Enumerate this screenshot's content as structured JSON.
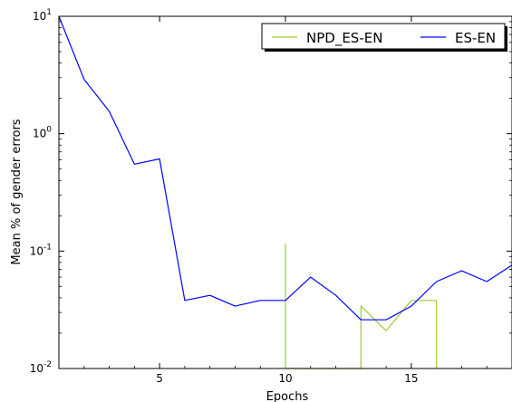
{
  "chart_data": {
    "type": "line",
    "xlabel": "Epochs",
    "ylabel": "Mean % of gender errors",
    "yscale": "log",
    "xlim": [
      1,
      19
    ],
    "ylim": [
      0.01,
      10
    ],
    "xticks": [
      5,
      10,
      15
    ],
    "yticks": [
      {
        "value": 0.01,
        "base": "10",
        "exp": "-2"
      },
      {
        "value": 0.1,
        "base": "10",
        "exp": "-1"
      },
      {
        "value": 1,
        "base": "10",
        "exp": "0"
      },
      {
        "value": 10,
        "base": "10",
        "exp": "1"
      }
    ],
    "legend": {
      "position": "top-right"
    },
    "series": [
      {
        "name": "NPD_ES-EN",
        "color": "#9acd32",
        "points": [
          [
            10,
            0.01
          ],
          [
            10,
            0.115
          ],
          [
            10,
            0.01
          ],
          [
            13,
            0.01
          ],
          [
            13,
            0.034
          ],
          [
            14,
            0.021
          ],
          [
            15,
            0.038
          ],
          [
            16,
            0.038
          ],
          [
            16,
            0.01
          ]
        ]
      },
      {
        "name": "ES-EN",
        "color": "#0000ff",
        "points": [
          [
            1,
            10.0
          ],
          [
            2,
            2.9
          ],
          [
            3,
            1.55
          ],
          [
            4,
            0.55
          ],
          [
            5,
            0.61
          ],
          [
            6,
            0.038
          ],
          [
            7,
            0.042
          ],
          [
            8,
            0.034
          ],
          [
            9,
            0.038
          ],
          [
            10,
            0.038
          ],
          [
            11,
            0.06
          ],
          [
            12,
            0.042
          ],
          [
            13,
            0.026
          ],
          [
            14,
            0.026
          ],
          [
            15,
            0.034
          ],
          [
            16,
            0.055
          ],
          [
            17,
            0.068
          ],
          [
            18,
            0.055
          ],
          [
            19,
            0.076
          ]
        ]
      }
    ]
  }
}
